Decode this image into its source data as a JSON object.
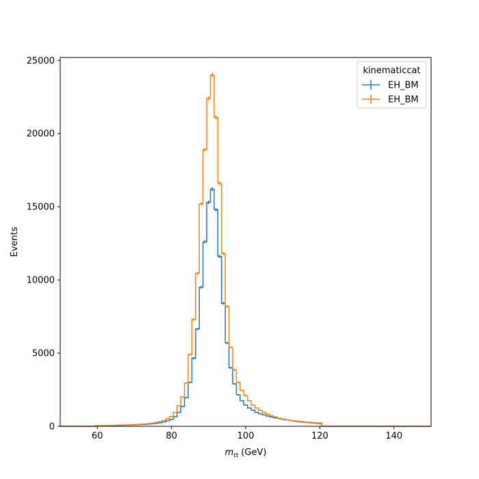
{
  "chart_data": {
    "type": "line",
    "drawstyle": "steps-mid",
    "title": "",
    "xlabel": "m_tt (GeV)",
    "xlabel_parts": {
      "var": "m",
      "sub": "tt",
      "unit": "(GeV)"
    },
    "ylabel": "Events",
    "xlim": [
      50,
      150
    ],
    "ylim": [
      0,
      25200
    ],
    "xticks": [
      60,
      80,
      100,
      120,
      140
    ],
    "yticks": [
      0,
      5000,
      10000,
      15000,
      20000,
      25000
    ],
    "grid": false,
    "legend": {
      "title": "kinematiccat",
      "placement": "top-right",
      "entries": [
        "EH_BM",
        "EH_BM"
      ]
    },
    "x": [
      60,
      61,
      62,
      63,
      64,
      65,
      66,
      67,
      68,
      69,
      70,
      71,
      72,
      73,
      74,
      75,
      76,
      77,
      78,
      79,
      80,
      81,
      82,
      83,
      84,
      85,
      86,
      87,
      88,
      89,
      90,
      91,
      92,
      93,
      94,
      95,
      96,
      97,
      98,
      99,
      100,
      101,
      102,
      103,
      104,
      105,
      106,
      107,
      108,
      109,
      110,
      111,
      112,
      113,
      114,
      115,
      116,
      117,
      118,
      119,
      120,
      121
    ],
    "series": [
      {
        "name": "EH_BM",
        "color": "#1f77b4",
        "values": [
          40,
          45,
          45,
          50,
          55,
          60,
          65,
          70,
          75,
          85,
          95,
          105,
          115,
          130,
          150,
          180,
          210,
          250,
          300,
          380,
          480,
          650,
          950,
          1350,
          1950,
          3000,
          4650,
          6650,
          9500,
          12600,
          15300,
          16200,
          14800,
          11600,
          8400,
          5700,
          4000,
          2900,
          2150,
          1750,
          1450,
          1250,
          1100,
          950,
          850,
          780,
          700,
          640,
          580,
          530,
          480,
          440,
          400,
          360,
          330,
          300,
          275,
          250,
          230,
          210,
          190,
          15
        ]
      },
      {
        "name": "EH_BM",
        "color": "#ff7f0e",
        "values": [
          45,
          50,
          55,
          60,
          65,
          70,
          75,
          85,
          95,
          105,
          115,
          130,
          145,
          160,
          185,
          220,
          270,
          330,
          400,
          520,
          680,
          950,
          1400,
          2000,
          2950,
          4900,
          7300,
          10450,
          15200,
          18900,
          22400,
          24000,
          21100,
          16600,
          11800,
          8200,
          5400,
          3850,
          3000,
          2450,
          2100,
          1750,
          1450,
          1250,
          1100,
          950,
          820,
          720,
          640,
          560,
          500,
          450,
          410,
          380,
          350,
          325,
          300,
          280,
          260,
          240,
          230,
          20
        ]
      }
    ]
  }
}
